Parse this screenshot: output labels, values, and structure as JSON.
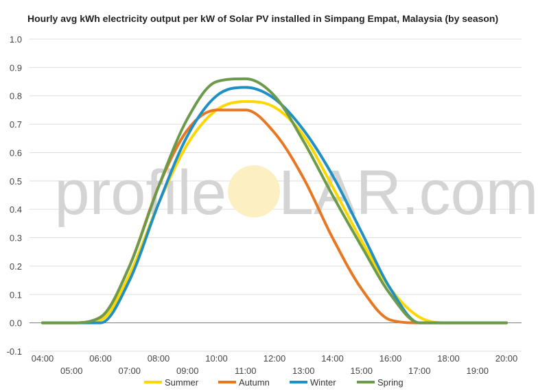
{
  "chart_data": {
    "type": "line",
    "title": "Hourly avg kWh electricity output per kW of Solar PV installed in Simpang Empat, Malaysia (by season)",
    "xlabel": "",
    "ylabel": "",
    "categories": [
      "04:00",
      "05:00",
      "06:00",
      "07:00",
      "08:00",
      "09:00",
      "10:00",
      "11:00",
      "12:00",
      "13:00",
      "14:00",
      "15:00",
      "16:00",
      "17:00",
      "18:00",
      "19:00",
      "20:00"
    ],
    "ylim": [
      -0.1,
      1.0
    ],
    "yticks": [
      "1.0",
      "0.9",
      "0.8",
      "0.7",
      "0.6",
      "0.5",
      "0.4",
      "0.3",
      "0.2",
      "0.1",
      "0.0",
      "-0.1"
    ],
    "grid": true,
    "legend_position": "bottom",
    "series": [
      {
        "name": "Summer",
        "color": "#FFD700",
        "values": [
          0.0,
          0.0,
          0.01,
          0.17,
          0.42,
          0.63,
          0.75,
          0.78,
          0.76,
          0.66,
          0.48,
          0.29,
          0.12,
          0.02,
          0.0,
          0.0,
          0.0
        ]
      },
      {
        "name": "Autumn",
        "color": "#E87722",
        "values": [
          0.0,
          0.0,
          0.02,
          0.2,
          0.48,
          0.68,
          0.75,
          0.75,
          0.67,
          0.51,
          0.3,
          0.12,
          0.01,
          0.0,
          0.0,
          0.0,
          0.0
        ]
      },
      {
        "name": "Winter",
        "color": "#1F8FC4",
        "values": [
          0.0,
          0.0,
          0.0,
          0.15,
          0.42,
          0.66,
          0.8,
          0.83,
          0.79,
          0.68,
          0.52,
          0.32,
          0.12,
          0.0,
          0.0,
          0.0,
          0.0
        ]
      },
      {
        "name": "Spring",
        "color": "#6B9A4A",
        "values": [
          0.0,
          0.0,
          0.02,
          0.2,
          0.48,
          0.72,
          0.85,
          0.86,
          0.8,
          0.64,
          0.45,
          0.27,
          0.1,
          0.0,
          0.0,
          0.0,
          0.0
        ]
      }
    ]
  },
  "watermark": {
    "left_text": "profile",
    "sun_letter": "S",
    "right_text": "LAR.com",
    "sun_color": "#FCEFC2"
  }
}
